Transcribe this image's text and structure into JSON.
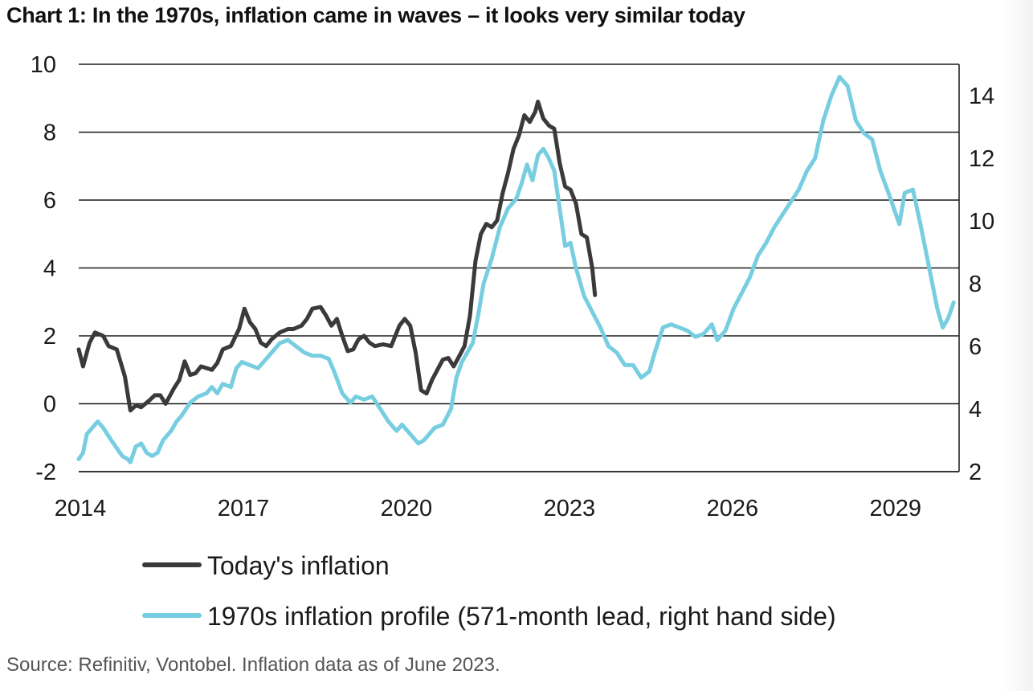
{
  "title": "Chart 1: In the 1970s, inflation came in waves – it looks very similar today",
  "source": "Source: Refinitiv, Vontobel. Inflation data as of June 2023.",
  "chart_data": {
    "type": "line",
    "x_range": [
      2014,
      2030.2
    ],
    "x_ticks": [
      "2014",
      "2017",
      "2020",
      "2023",
      "2026",
      "2029"
    ],
    "y_left": {
      "range": [
        -2,
        10
      ],
      "ticks": [
        "-2",
        "0",
        "2",
        "4",
        "6",
        "8",
        "10"
      ]
    },
    "y_right": {
      "range": [
        2,
        15
      ],
      "ticks": [
        "2",
        "4",
        "6",
        "8",
        "10",
        "12",
        "14"
      ]
    },
    "grid": "horizontal",
    "series": [
      {
        "name": "Today's inflation",
        "axis": "left",
        "color": "#3a3a3a",
        "points": [
          [
            2014.0,
            1.6
          ],
          [
            2014.08,
            1.1
          ],
          [
            2014.2,
            1.8
          ],
          [
            2014.3,
            2.1
          ],
          [
            2014.45,
            2.0
          ],
          [
            2014.55,
            1.7
          ],
          [
            2014.7,
            1.6
          ],
          [
            2014.85,
            0.8
          ],
          [
            2014.95,
            -0.2
          ],
          [
            2015.05,
            -0.05
          ],
          [
            2015.15,
            -0.1
          ],
          [
            2015.3,
            0.1
          ],
          [
            2015.4,
            0.25
          ],
          [
            2015.5,
            0.25
          ],
          [
            2015.6,
            0.0
          ],
          [
            2015.75,
            0.45
          ],
          [
            2015.85,
            0.7
          ],
          [
            2015.95,
            1.25
          ],
          [
            2016.05,
            0.85
          ],
          [
            2016.15,
            0.9
          ],
          [
            2016.25,
            1.1
          ],
          [
            2016.35,
            1.05
          ],
          [
            2016.45,
            1.0
          ],
          [
            2016.55,
            1.2
          ],
          [
            2016.65,
            1.6
          ],
          [
            2016.8,
            1.7
          ],
          [
            2016.95,
            2.2
          ],
          [
            2017.05,
            2.8
          ],
          [
            2017.15,
            2.4
          ],
          [
            2017.25,
            2.2
          ],
          [
            2017.35,
            1.8
          ],
          [
            2017.45,
            1.7
          ],
          [
            2017.55,
            1.9
          ],
          [
            2017.7,
            2.1
          ],
          [
            2017.85,
            2.2
          ],
          [
            2017.95,
            2.2
          ],
          [
            2018.1,
            2.3
          ],
          [
            2018.2,
            2.5
          ],
          [
            2018.3,
            2.8
          ],
          [
            2018.45,
            2.85
          ],
          [
            2018.55,
            2.6
          ],
          [
            2018.65,
            2.3
          ],
          [
            2018.75,
            2.5
          ],
          [
            2018.85,
            2.0
          ],
          [
            2018.95,
            1.55
          ],
          [
            2019.05,
            1.6
          ],
          [
            2019.15,
            1.9
          ],
          [
            2019.25,
            2.0
          ],
          [
            2019.35,
            1.8
          ],
          [
            2019.45,
            1.7
          ],
          [
            2019.6,
            1.75
          ],
          [
            2019.75,
            1.7
          ],
          [
            2019.9,
            2.3
          ],
          [
            2020.0,
            2.5
          ],
          [
            2020.1,
            2.3
          ],
          [
            2020.2,
            1.5
          ],
          [
            2020.3,
            0.4
          ],
          [
            2020.4,
            0.3
          ],
          [
            2020.5,
            0.7
          ],
          [
            2020.6,
            1.0
          ],
          [
            2020.7,
            1.3
          ],
          [
            2020.8,
            1.35
          ],
          [
            2020.9,
            1.1
          ],
          [
            2021.0,
            1.4
          ],
          [
            2021.1,
            1.7
          ],
          [
            2021.2,
            2.6
          ],
          [
            2021.3,
            4.2
          ],
          [
            2021.4,
            5.0
          ],
          [
            2021.5,
            5.3
          ],
          [
            2021.6,
            5.2
          ],
          [
            2021.7,
            5.4
          ],
          [
            2021.8,
            6.2
          ],
          [
            2021.9,
            6.8
          ],
          [
            2022.0,
            7.5
          ],
          [
            2022.1,
            7.9
          ],
          [
            2022.2,
            8.5
          ],
          [
            2022.3,
            8.3
          ],
          [
            2022.4,
            8.6
          ],
          [
            2022.45,
            8.9
          ],
          [
            2022.55,
            8.4
          ],
          [
            2022.65,
            8.2
          ],
          [
            2022.75,
            8.1
          ],
          [
            2022.85,
            7.1
          ],
          [
            2022.95,
            6.4
          ],
          [
            2023.05,
            6.3
          ],
          [
            2023.15,
            5.9
          ],
          [
            2023.25,
            5.0
          ],
          [
            2023.35,
            4.9
          ],
          [
            2023.45,
            4.0
          ],
          [
            2023.5,
            3.2
          ]
        ]
      },
      {
        "name": "1970s inflation profile (571-month lead, right hand side)",
        "axis": "right",
        "color": "#77cee0",
        "points": [
          [
            2014.0,
            2.4
          ],
          [
            2014.08,
            2.6
          ],
          [
            2014.15,
            3.2
          ],
          [
            2014.25,
            3.4
          ],
          [
            2014.35,
            3.6
          ],
          [
            2014.45,
            3.4
          ],
          [
            2014.6,
            3.0
          ],
          [
            2014.72,
            2.7
          ],
          [
            2014.8,
            2.5
          ],
          [
            2014.9,
            2.4
          ],
          [
            2014.95,
            2.3
          ],
          [
            2015.05,
            2.8
          ],
          [
            2015.15,
            2.9
          ],
          [
            2015.25,
            2.6
          ],
          [
            2015.35,
            2.5
          ],
          [
            2015.45,
            2.6
          ],
          [
            2015.55,
            3.0
          ],
          [
            2015.7,
            3.3
          ],
          [
            2015.8,
            3.6
          ],
          [
            2015.9,
            3.8
          ],
          [
            2016.05,
            4.2
          ],
          [
            2016.2,
            4.4
          ],
          [
            2016.35,
            4.5
          ],
          [
            2016.45,
            4.7
          ],
          [
            2016.55,
            4.5
          ],
          [
            2016.65,
            4.8
          ],
          [
            2016.8,
            4.7
          ],
          [
            2016.9,
            5.3
          ],
          [
            2017.0,
            5.5
          ],
          [
            2017.15,
            5.4
          ],
          [
            2017.3,
            5.3
          ],
          [
            2017.45,
            5.6
          ],
          [
            2017.55,
            5.8
          ],
          [
            2017.7,
            6.1
          ],
          [
            2017.85,
            6.2
          ],
          [
            2018.0,
            6.0
          ],
          [
            2018.15,
            5.8
          ],
          [
            2018.3,
            5.7
          ],
          [
            2018.45,
            5.7
          ],
          [
            2018.6,
            5.6
          ],
          [
            2018.7,
            5.2
          ],
          [
            2018.85,
            4.5
          ],
          [
            2019.0,
            4.2
          ],
          [
            2019.1,
            4.4
          ],
          [
            2019.25,
            4.3
          ],
          [
            2019.4,
            4.4
          ],
          [
            2019.55,
            4.0
          ],
          [
            2019.7,
            3.6
          ],
          [
            2019.85,
            3.3
          ],
          [
            2019.95,
            3.5
          ],
          [
            2020.05,
            3.3
          ],
          [
            2020.15,
            3.1
          ],
          [
            2020.25,
            2.9
          ],
          [
            2020.35,
            3.0
          ],
          [
            2020.45,
            3.2
          ],
          [
            2020.55,
            3.4
          ],
          [
            2020.7,
            3.5
          ],
          [
            2020.85,
            4.0
          ],
          [
            2020.95,
            5.0
          ],
          [
            2021.05,
            5.5
          ],
          [
            2021.15,
            5.8
          ],
          [
            2021.25,
            6.1
          ],
          [
            2021.35,
            7.0
          ],
          [
            2021.45,
            8.0
          ],
          [
            2021.6,
            8.8
          ],
          [
            2021.75,
            9.8
          ],
          [
            2021.9,
            10.4
          ],
          [
            2022.05,
            10.7
          ],
          [
            2022.15,
            11.2
          ],
          [
            2022.25,
            11.8
          ],
          [
            2022.35,
            11.3
          ],
          [
            2022.45,
            12.1
          ],
          [
            2022.55,
            12.3
          ],
          [
            2022.65,
            12.0
          ],
          [
            2022.75,
            11.6
          ],
          [
            2022.85,
            10.4
          ],
          [
            2022.95,
            9.2
          ],
          [
            2023.05,
            9.3
          ],
          [
            2023.15,
            8.5
          ],
          [
            2023.3,
            7.6
          ],
          [
            2023.45,
            7.1
          ],
          [
            2023.6,
            6.6
          ],
          [
            2023.75,
            6.0
          ],
          [
            2023.9,
            5.8
          ],
          [
            2024.05,
            5.4
          ],
          [
            2024.2,
            5.4
          ],
          [
            2024.35,
            5.0
          ],
          [
            2024.5,
            5.2
          ],
          [
            2024.6,
            5.8
          ],
          [
            2024.75,
            6.6
          ],
          [
            2024.9,
            6.7
          ],
          [
            2025.05,
            6.6
          ],
          [
            2025.2,
            6.5
          ],
          [
            2025.35,
            6.3
          ],
          [
            2025.5,
            6.4
          ],
          [
            2025.65,
            6.7
          ],
          [
            2025.75,
            6.2
          ],
          [
            2025.9,
            6.5
          ],
          [
            2026.05,
            7.2
          ],
          [
            2026.2,
            7.7
          ],
          [
            2026.35,
            8.2
          ],
          [
            2026.5,
            8.9
          ],
          [
            2026.65,
            9.3
          ],
          [
            2026.8,
            9.8
          ],
          [
            2026.95,
            10.2
          ],
          [
            2027.1,
            10.6
          ],
          [
            2027.25,
            11.0
          ],
          [
            2027.4,
            11.6
          ],
          [
            2027.55,
            12.0
          ],
          [
            2027.7,
            13.2
          ],
          [
            2027.85,
            14.0
          ],
          [
            2028.0,
            14.6
          ],
          [
            2028.15,
            14.3
          ],
          [
            2028.3,
            13.2
          ],
          [
            2028.45,
            12.8
          ],
          [
            2028.6,
            12.6
          ],
          [
            2028.75,
            11.6
          ],
          [
            2028.9,
            10.9
          ],
          [
            2029.0,
            10.4
          ],
          [
            2029.1,
            9.9
          ],
          [
            2029.2,
            10.9
          ],
          [
            2029.35,
            11.0
          ],
          [
            2029.5,
            9.8
          ],
          [
            2029.65,
            8.5
          ],
          [
            2029.8,
            7.2
          ],
          [
            2029.9,
            6.6
          ],
          [
            2030.0,
            6.9
          ],
          [
            2030.1,
            7.4
          ]
        ]
      }
    ]
  }
}
